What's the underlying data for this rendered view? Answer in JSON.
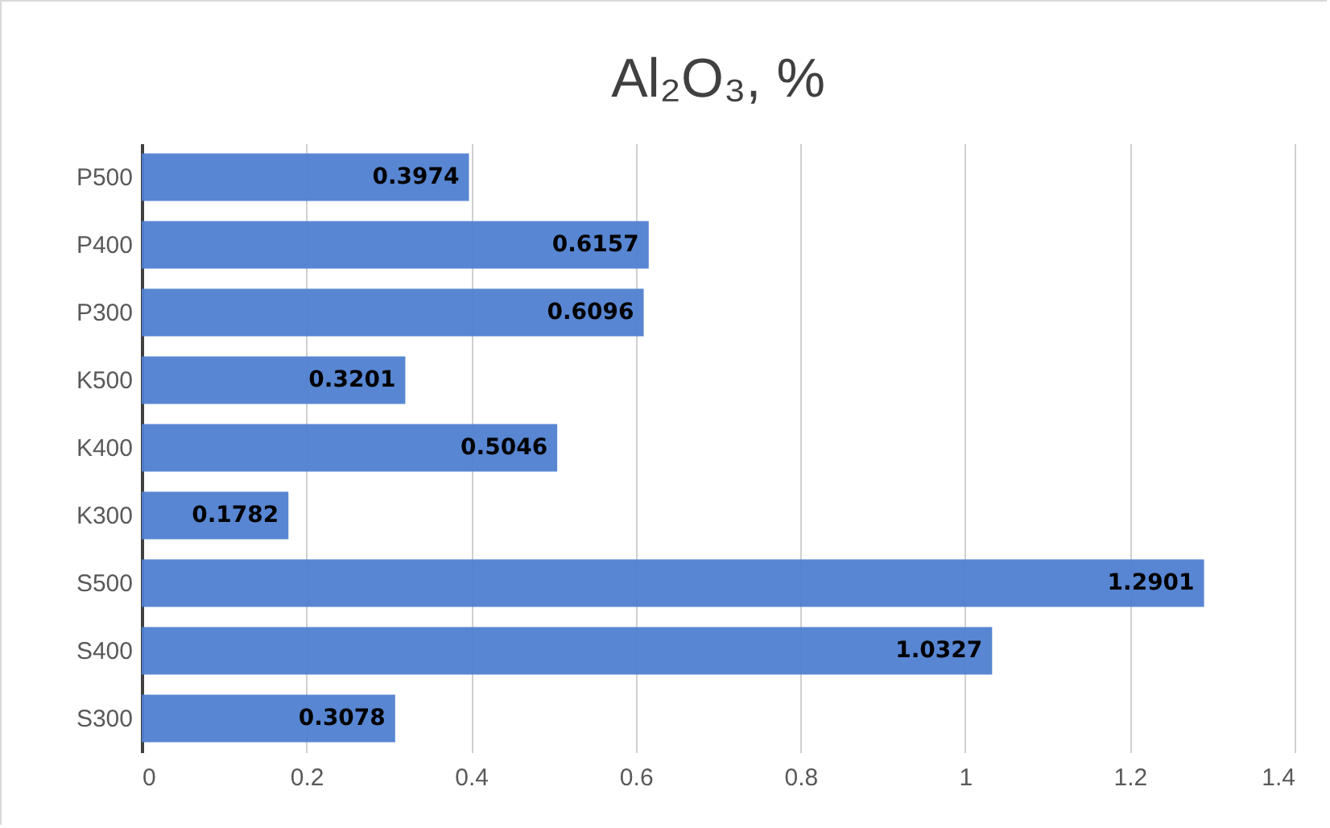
{
  "chart_data": {
    "type": "bar",
    "orientation": "horizontal",
    "title": "Al₂O₃, %",
    "categories": [
      "P500",
      "P400",
      "P300",
      "K500",
      "K400",
      "K300",
      "S500",
      "S400",
      "S300"
    ],
    "values": [
      0.3974,
      0.6157,
      0.6096,
      0.3201,
      0.5046,
      0.1782,
      1.2901,
      1.0327,
      0.3078
    ],
    "color": "#4f7fd0",
    "xlim": [
      0,
      1.4
    ],
    "xticks": [
      0,
      0.2,
      0.4,
      0.6,
      0.8,
      1,
      1.2,
      1.4
    ],
    "grid": "x",
    "data_labels": true
  }
}
